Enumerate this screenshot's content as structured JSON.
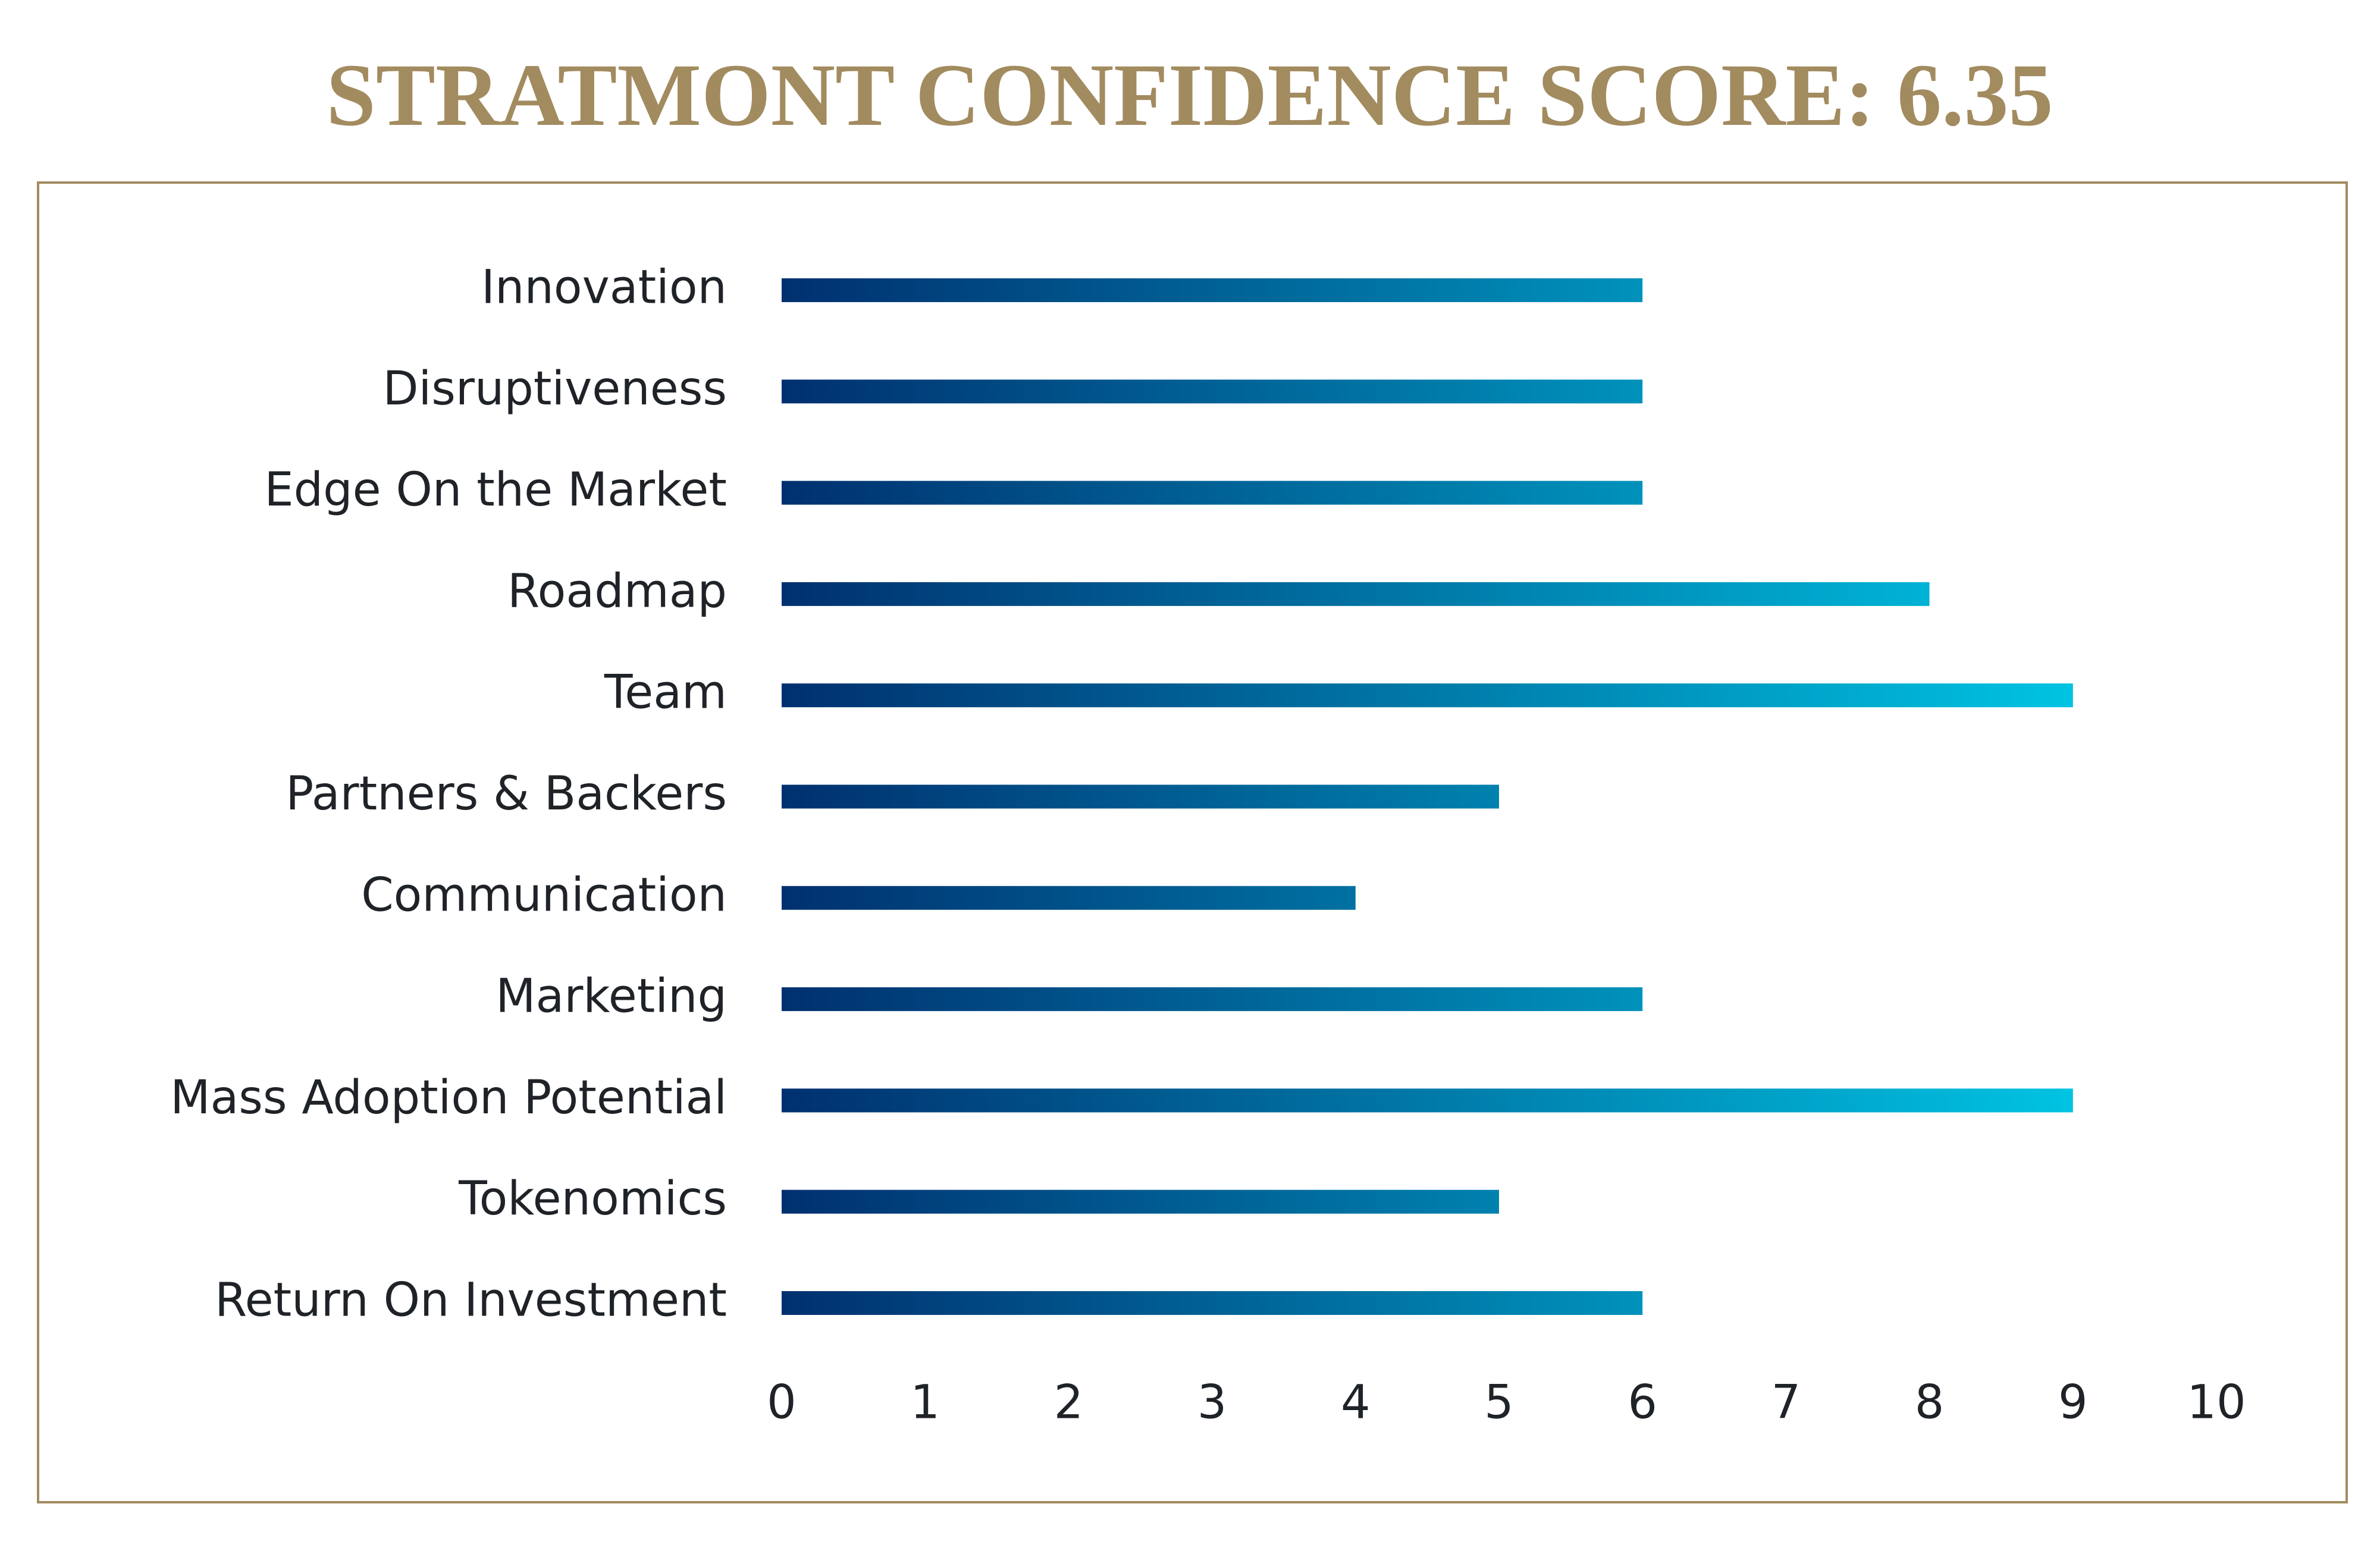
{
  "chart_data": {
    "type": "barh",
    "title": "STRATMONT CONFIDENCE SCORE: 6.35",
    "categories": [
      "Innovation",
      "Disruptiveness",
      "Edge On the Market",
      "Roadmap",
      "Team",
      "Partners & Backers",
      "Communication",
      "Marketing",
      "Mass Adoption Potential",
      "Tokenomics",
      "Return On Investment"
    ],
    "values": [
      6,
      6,
      6,
      8,
      9,
      5,
      4,
      6,
      9,
      5,
      6
    ],
    "gradient": [
      "#00306f",
      "#00c3e2"
    ],
    "xlim": [
      0,
      10
    ],
    "xticks": [
      0,
      1,
      2,
      3,
      4,
      5,
      6,
      7,
      8,
      9,
      10
    ],
    "grid": false
  }
}
